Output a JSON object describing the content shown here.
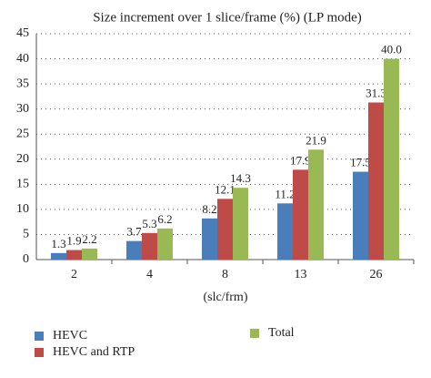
{
  "chart_data": {
    "type": "bar",
    "title": "Size increment over 1 slice/frame (%) (LP mode)",
    "x_label": "(slc/frm)",
    "categories": [
      "2",
      "4",
      "8",
      "13",
      "26"
    ],
    "series": [
      {
        "name": "HEVC",
        "color": "#4a7ebb",
        "values": [
          1.3,
          3.7,
          8.2,
          11.2,
          17.5
        ],
        "value_labels": [
          "1.3",
          "3.7",
          "8.2",
          "11.2",
          "17.5"
        ]
      },
      {
        "name": "HEVC and RTP",
        "color": "#be4b48",
        "values": [
          1.9,
          5.3,
          12.1,
          17.9,
          31.3
        ],
        "value_labels": [
          "1.9",
          "5.3",
          "12.1",
          "17.9",
          "31.3"
        ]
      },
      {
        "name": "Total",
        "color": "#98b954",
        "values": [
          2.2,
          6.2,
          14.3,
          21.9,
          40.0
        ],
        "value_labels": [
          "2.2",
          "6.2",
          "14.3",
          "21.9",
          "40.0"
        ]
      }
    ],
    "ylim": [
      0,
      45
    ],
    "yticks": [
      0,
      5,
      10,
      15,
      20,
      25,
      30,
      35,
      40,
      45
    ],
    "grid": true,
    "legend": "bottom"
  }
}
